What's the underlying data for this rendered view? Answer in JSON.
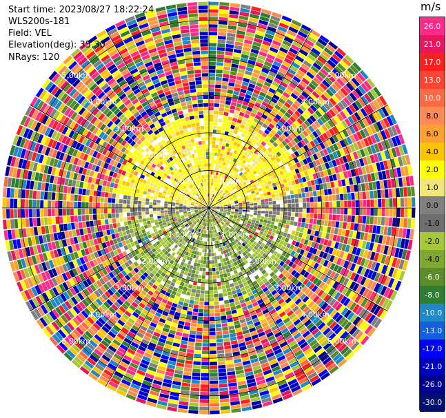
{
  "info": {
    "start_time": "Start time: 2023/08/27 18:22:24",
    "instrument": "WLS200s-181",
    "field": "Field: VEL",
    "elevation": "Elevation(deg): 35.30",
    "nrays": "NRays: 120"
  },
  "range_rings": {
    "labels": [
      "1.00km",
      "2.00km",
      "3.00km",
      "4.00km",
      "5.00km"
    ]
  },
  "colorbar": {
    "unit": "m/s",
    "ticks": [
      "26.0",
      "21.0",
      "17.0",
      "13.0",
      "10.0",
      "8.0",
      "6.0",
      "4.0",
      "2.0",
      "1.0",
      "0.0",
      "-1.0",
      "-2.0",
      "-4.0",
      "-6.0",
      "-8.0",
      "-10.0",
      "-13.0",
      "-17.0",
      "-21.0",
      "-26.0",
      "-30.0"
    ],
    "colors": [
      "#ff2a8a",
      "#e8175d",
      "#ff1f1f",
      "#ff4433",
      "#ff6a45",
      "#ff8a55",
      "#ffa030",
      "#ffc400",
      "#ffff00",
      "#f2e678",
      "#808080",
      "#6e6e6e",
      "#a6c838",
      "#7ea832",
      "#5a8c2a",
      "#2e7d32",
      "#1e88c8",
      "#1060e0",
      "#0000ff",
      "#0000c0",
      "#000090",
      "#001070"
    ]
  },
  "chart_data": {
    "type": "heatmap",
    "field": "VEL",
    "unit": "m/s",
    "nrays": 120,
    "elevation_deg": 35.3,
    "range_km": [
      0,
      5.5
    ],
    "colorbar_range": [
      -30.0,
      26.0
    ],
    "pattern": "positive velocities (yellow) toward north within ~2 km, negative velocities (green) toward south within ~2 km, noisy beyond"
  }
}
